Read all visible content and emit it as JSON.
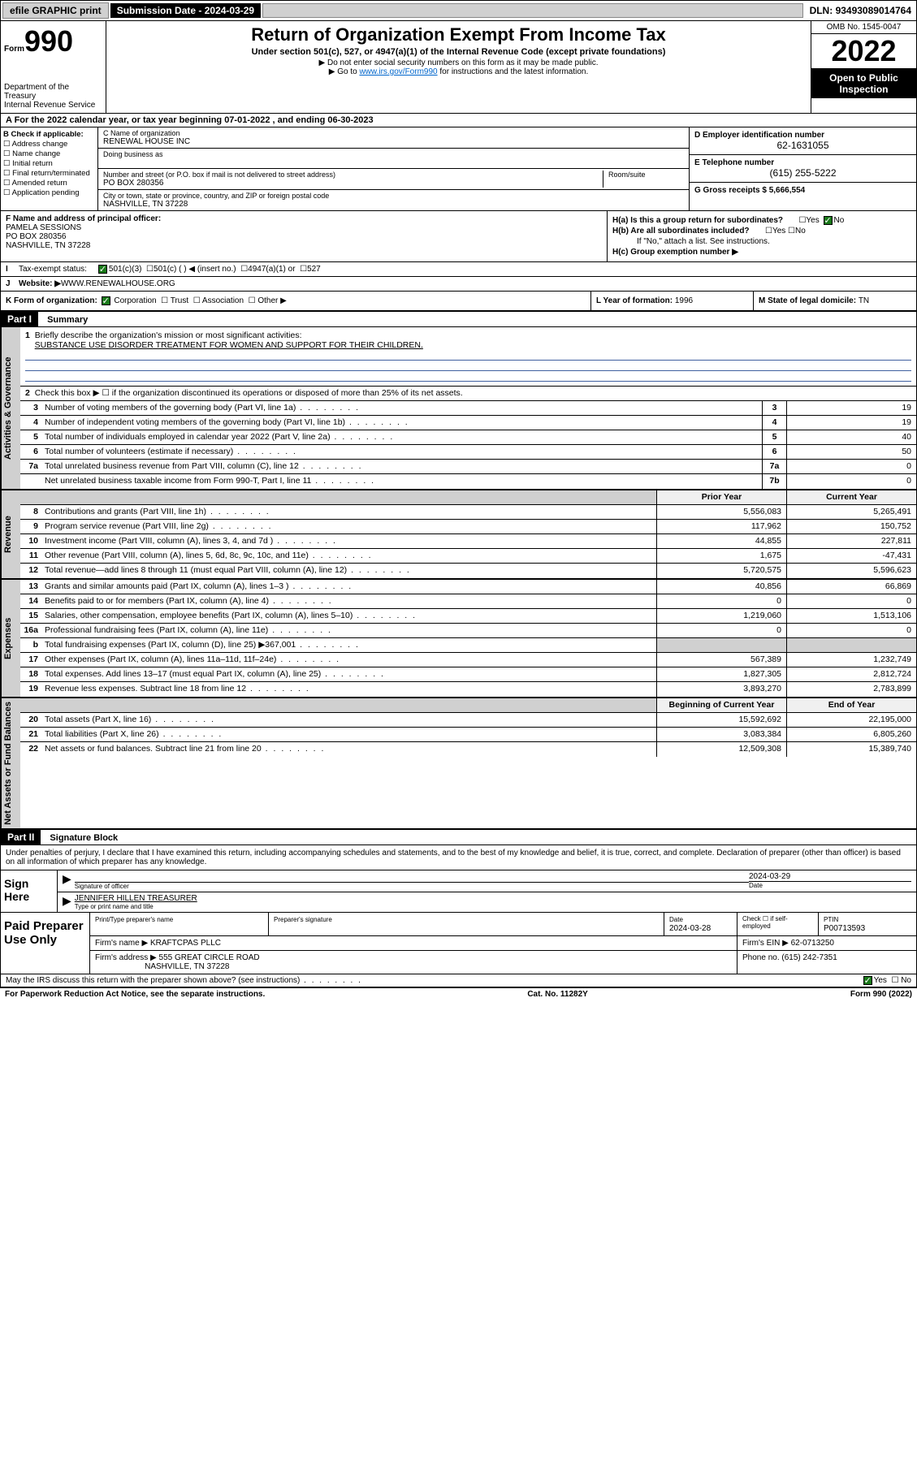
{
  "topbar": {
    "efile": "efile GRAPHIC print",
    "submission_label": "Submission Date - ",
    "submission_date": "2024-03-29",
    "dln_label": "DLN: ",
    "dln": "93493089014764"
  },
  "header": {
    "form_prefix": "Form",
    "form_number": "990",
    "dept": "Department of the Treasury\nInternal Revenue Service",
    "title": "Return of Organization Exempt From Income Tax",
    "subtitle": "Under section 501(c), 527, or 4947(a)(1) of the Internal Revenue Code (except private foundations)",
    "warn": "▶ Do not enter social security numbers on this form as it may be made public.",
    "goto": "▶ Go to ",
    "goto_link": "www.irs.gov/Form990",
    "goto_suffix": " for instructions and the latest information.",
    "omb": "OMB No. 1545-0047",
    "year": "2022",
    "inspection": "Open to Public Inspection"
  },
  "row_a": "A For the 2022 calendar year, or tax year beginning 07-01-2022   , and ending 06-30-2023",
  "col_b": {
    "hdr": "B Check if applicable:",
    "opts": [
      "Address change",
      "Name change",
      "Initial return",
      "Final return/terminated",
      "Amended return",
      "Application pending"
    ]
  },
  "col_c": {
    "name_lbl": "C Name of organization",
    "name": "RENEWAL HOUSE INC",
    "dba_lbl": "Doing business as",
    "addr_lbl": "Number and street (or P.O. box if mail is not delivered to street address)",
    "room_lbl": "Room/suite",
    "addr": "PO BOX 280356",
    "city_lbl": "City or town, state or province, country, and ZIP or foreign postal code",
    "city": "NASHVILLE, TN  37228"
  },
  "col_d": {
    "ein_lbl": "D Employer identification number",
    "ein": "62-1631055",
    "phone_lbl": "E Telephone number",
    "phone": "(615) 255-5222",
    "gross_lbl": "G Gross receipts $ ",
    "gross": "5,666,554"
  },
  "f": {
    "lbl": "F Name and address of principal officer:",
    "name": "PAMELA SESSIONS",
    "addr1": "PO BOX 280356",
    "addr2": "NASHVILLE, TN  37228"
  },
  "h": {
    "a_lbl": "H(a)  Is this a group return for subordinates?",
    "b_lbl": "H(b)  Are all subordinates included?",
    "b_note": "If \"No,\" attach a list. See instructions.",
    "c_lbl": "H(c)  Group exemption number ▶"
  },
  "i": {
    "lbl": "Tax-exempt status:",
    "opts": [
      "501(c)(3)",
      "501(c) (  ) ◀ (insert no.)",
      "4947(a)(1) or",
      "527"
    ]
  },
  "j": {
    "lbl": "Website: ▶",
    "val": " WWW.RENEWALHOUSE.ORG"
  },
  "k": {
    "lbl": "K Form of organization:",
    "opts": [
      "Corporation",
      "Trust",
      "Association",
      "Other ▶"
    ]
  },
  "l": {
    "lbl": "L Year of formation: ",
    "val": "1996"
  },
  "m": {
    "lbl": "M State of legal domicile: ",
    "val": "TN"
  },
  "part1": {
    "hdr": "Part I",
    "title": "Summary"
  },
  "governance": {
    "side": "Activities & Governance",
    "l1_lbl": "Briefly describe the organization's mission or most significant activities:",
    "l1_val": "SUBSTANCE USE DISORDER TREATMENT FOR WOMEN AND SUPPORT FOR THEIR CHILDREN.",
    "l2": "Check this box ▶ ☐  if the organization discontinued its operations or disposed of more than 25% of its net assets.",
    "rows": [
      {
        "n": "3",
        "d": "Number of voting members of the governing body (Part VI, line 1a)",
        "b": "3",
        "v": "19"
      },
      {
        "n": "4",
        "d": "Number of independent voting members of the governing body (Part VI, line 1b)",
        "b": "4",
        "v": "19"
      },
      {
        "n": "5",
        "d": "Total number of individuals employed in calendar year 2022 (Part V, line 2a)",
        "b": "5",
        "v": "40"
      },
      {
        "n": "6",
        "d": "Total number of volunteers (estimate if necessary)",
        "b": "6",
        "v": "50"
      },
      {
        "n": "7a",
        "d": "Total unrelated business revenue from Part VIII, column (C), line 12",
        "b": "7a",
        "v": "0"
      },
      {
        "n": "",
        "d": "Net unrelated business taxable income from Form 990-T, Part I, line 11",
        "b": "7b",
        "v": "0"
      }
    ]
  },
  "revenue": {
    "side": "Revenue",
    "th_prior": "Prior Year",
    "th_current": "Current Year",
    "rows": [
      {
        "n": "8",
        "d": "Contributions and grants (Part VIII, line 1h)",
        "p": "5,556,083",
        "c": "5,265,491"
      },
      {
        "n": "9",
        "d": "Program service revenue (Part VIII, line 2g)",
        "p": "117,962",
        "c": "150,752"
      },
      {
        "n": "10",
        "d": "Investment income (Part VIII, column (A), lines 3, 4, and 7d )",
        "p": "44,855",
        "c": "227,811"
      },
      {
        "n": "11",
        "d": "Other revenue (Part VIII, column (A), lines 5, 6d, 8c, 9c, 10c, and 11e)",
        "p": "1,675",
        "c": "-47,431"
      },
      {
        "n": "12",
        "d": "Total revenue—add lines 8 through 11 (must equal Part VIII, column (A), line 12)",
        "p": "5,720,575",
        "c": "5,596,623"
      }
    ]
  },
  "expenses": {
    "side": "Expenses",
    "rows": [
      {
        "n": "13",
        "d": "Grants and similar amounts paid (Part IX, column (A), lines 1–3 )",
        "p": "40,856",
        "c": "66,869"
      },
      {
        "n": "14",
        "d": "Benefits paid to or for members (Part IX, column (A), line 4)",
        "p": "0",
        "c": "0"
      },
      {
        "n": "15",
        "d": "Salaries, other compensation, employee benefits (Part IX, column (A), lines 5–10)",
        "p": "1,219,060",
        "c": "1,513,106"
      },
      {
        "n": "16a",
        "d": "Professional fundraising fees (Part IX, column (A), line 11e)",
        "p": "0",
        "c": "0"
      },
      {
        "n": "b",
        "d": "Total fundraising expenses (Part IX, column (D), line 25) ▶367,001",
        "p": "",
        "c": "",
        "gray": true
      },
      {
        "n": "17",
        "d": "Other expenses (Part IX, column (A), lines 11a–11d, 11f–24e)",
        "p": "567,389",
        "c": "1,232,749"
      },
      {
        "n": "18",
        "d": "Total expenses. Add lines 13–17 (must equal Part IX, column (A), line 25)",
        "p": "1,827,305",
        "c": "2,812,724"
      },
      {
        "n": "19",
        "d": "Revenue less expenses. Subtract line 18 from line 12",
        "p": "3,893,270",
        "c": "2,783,899"
      }
    ]
  },
  "netassets": {
    "side": "Net Assets or Fund Balances",
    "th_begin": "Beginning of Current Year",
    "th_end": "End of Year",
    "rows": [
      {
        "n": "20",
        "d": "Total assets (Part X, line 16)",
        "p": "15,592,692",
        "c": "22,195,000"
      },
      {
        "n": "21",
        "d": "Total liabilities (Part X, line 26)",
        "p": "3,083,384",
        "c": "6,805,260"
      },
      {
        "n": "22",
        "d": "Net assets or fund balances. Subtract line 21 from line 20",
        "p": "12,509,308",
        "c": "15,389,740"
      }
    ]
  },
  "part2": {
    "hdr": "Part II",
    "title": "Signature Block",
    "decl": "Under penalties of perjury, I declare that I have examined this return, including accompanying schedules and statements, and to the best of my knowledge and belief, it is true, correct, and complete. Declaration of preparer (other than officer) is based on all information of which preparer has any knowledge."
  },
  "sign": {
    "lbl": "Sign Here",
    "sig_lbl": "Signature of officer",
    "date": "2024-03-29",
    "date_lbl": "Date",
    "name": "JENNIFER HILLEN  TREASURER",
    "name_lbl": "Type or print name and title"
  },
  "prep": {
    "lbl": "Paid Preparer Use Only",
    "h1": "Print/Type preparer's name",
    "h2": "Preparer's signature",
    "h3": "Date",
    "h3v": "2024-03-28",
    "h4": "Check ☐ if self-employed",
    "h5": "PTIN",
    "h5v": "P00713593",
    "firm_lbl": "Firm's name    ▶ ",
    "firm": "KRAFTCPAS PLLC",
    "ein_lbl": "Firm's EIN ▶ ",
    "ein": "62-0713250",
    "addr_lbl": "Firm's address ▶ ",
    "addr1": "555 GREAT CIRCLE ROAD",
    "addr2": "NASHVILLE, TN  37228",
    "phone_lbl": "Phone no. ",
    "phone": "(615) 242-7351"
  },
  "discuss": "May the IRS discuss this return with the preparer shown above? (see instructions)",
  "footer": {
    "left": "For Paperwork Reduction Act Notice, see the separate instructions.",
    "mid": "Cat. No. 11282Y",
    "right": "Form 990 (2022)"
  }
}
